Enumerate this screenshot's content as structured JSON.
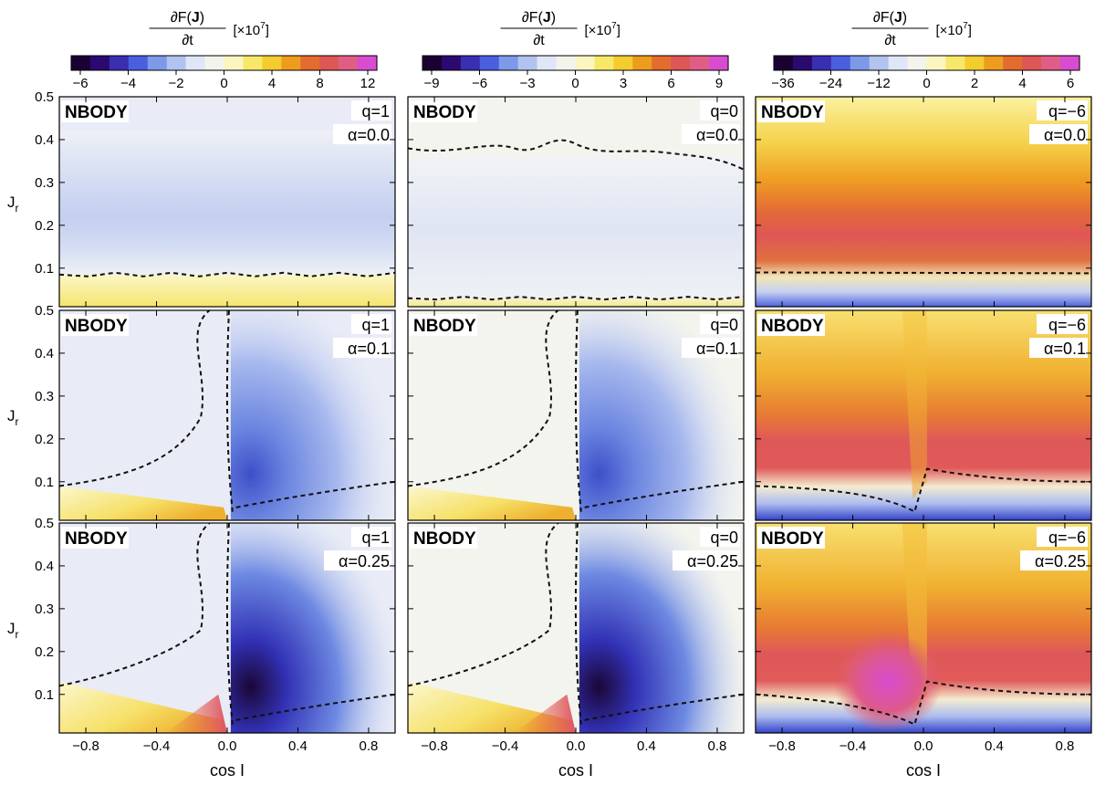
{
  "figure": {
    "colorbar_titles": [
      {
        "numerator": "∂F(",
        "bold": "J",
        "close": ")",
        "denominator": "∂t",
        "unit": "[×10",
        "exp": "7",
        "unit_close": "]"
      },
      {
        "numerator": "∂F(",
        "bold": "J",
        "close": ")",
        "denominator": "∂t",
        "unit": "[×10",
        "exp": "7",
        "unit_close": "]"
      },
      {
        "numerator": "∂F(",
        "bold": "J",
        "close": ")",
        "denominator": "∂t",
        "unit": "[×10",
        "exp": "7",
        "unit_close": "]"
      }
    ],
    "colorbars": [
      {
        "ticks": [
          "−6",
          "−4",
          "−2",
          "0",
          "4",
          "8",
          "12"
        ]
      },
      {
        "ticks": [
          "−9",
          "−6",
          "−3",
          "0",
          "3",
          "6",
          "9"
        ]
      },
      {
        "ticks": [
          "−36",
          "−24",
          "−12",
          "0",
          "2",
          "4",
          "6"
        ]
      }
    ],
    "xlabel": "cos I",
    "ylabel_main": "J",
    "ylabel_sub": "r",
    "xticks": [
      "−0.8",
      "−0.4",
      "0.0",
      "0.4",
      "0.8"
    ],
    "yticks": [
      "0.1",
      "0.2",
      "0.3",
      "0.4",
      "0.5"
    ],
    "panel_tag": "NBODY",
    "colors": {
      "negative_scale": [
        "#1b0034",
        "#2a0a6e",
        "#3a2fb0",
        "#4a5fe0",
        "#7c9ae8",
        "#b3c3f0",
        "#dfe6f7",
        "#f4f4ec"
      ],
      "positive_scale": [
        "#f4f4ec",
        "#fbf6c0",
        "#f8e86a",
        "#f3cd2e",
        "#ee9c1e",
        "#e46c2e",
        "#df5656",
        "#e05e86",
        "#d84cd0"
      ]
    }
  },
  "chart_data": {
    "type": "heatmap",
    "description_grid": "3x3 small multiples of contour maps of dF(J)/dt (x10^7) over (cos I, J_r); dashed line marks zero contour",
    "x": {
      "label": "cos I",
      "range": [
        -0.95,
        0.95
      ],
      "ticks": [
        -0.8,
        -0.4,
        0.0,
        0.4,
        0.8
      ]
    },
    "y": {
      "label": "J_r",
      "range": [
        0.01,
        0.5
      ],
      "ticks": [
        0.1,
        0.2,
        0.3,
        0.4,
        0.5
      ]
    },
    "columns": [
      {
        "q_label": "q=1",
        "colorbar_ticks": [
          -6,
          -4,
          -2,
          0,
          4,
          8,
          12
        ]
      },
      {
        "q_label": "q=0",
        "colorbar_ticks": [
          -9,
          -6,
          -3,
          0,
          3,
          6,
          9
        ]
      },
      {
        "q_label": "q=−6",
        "colorbar_ticks": [
          -36,
          -24,
          -12,
          0,
          2,
          4,
          6
        ]
      }
    ],
    "rows": [
      {
        "alpha_label": "α=0.0"
      },
      {
        "alpha_label": "α=0.1"
      },
      {
        "alpha_label": "α=0.25"
      }
    ],
    "zero_contour_style": "dashed",
    "grid": false
  }
}
